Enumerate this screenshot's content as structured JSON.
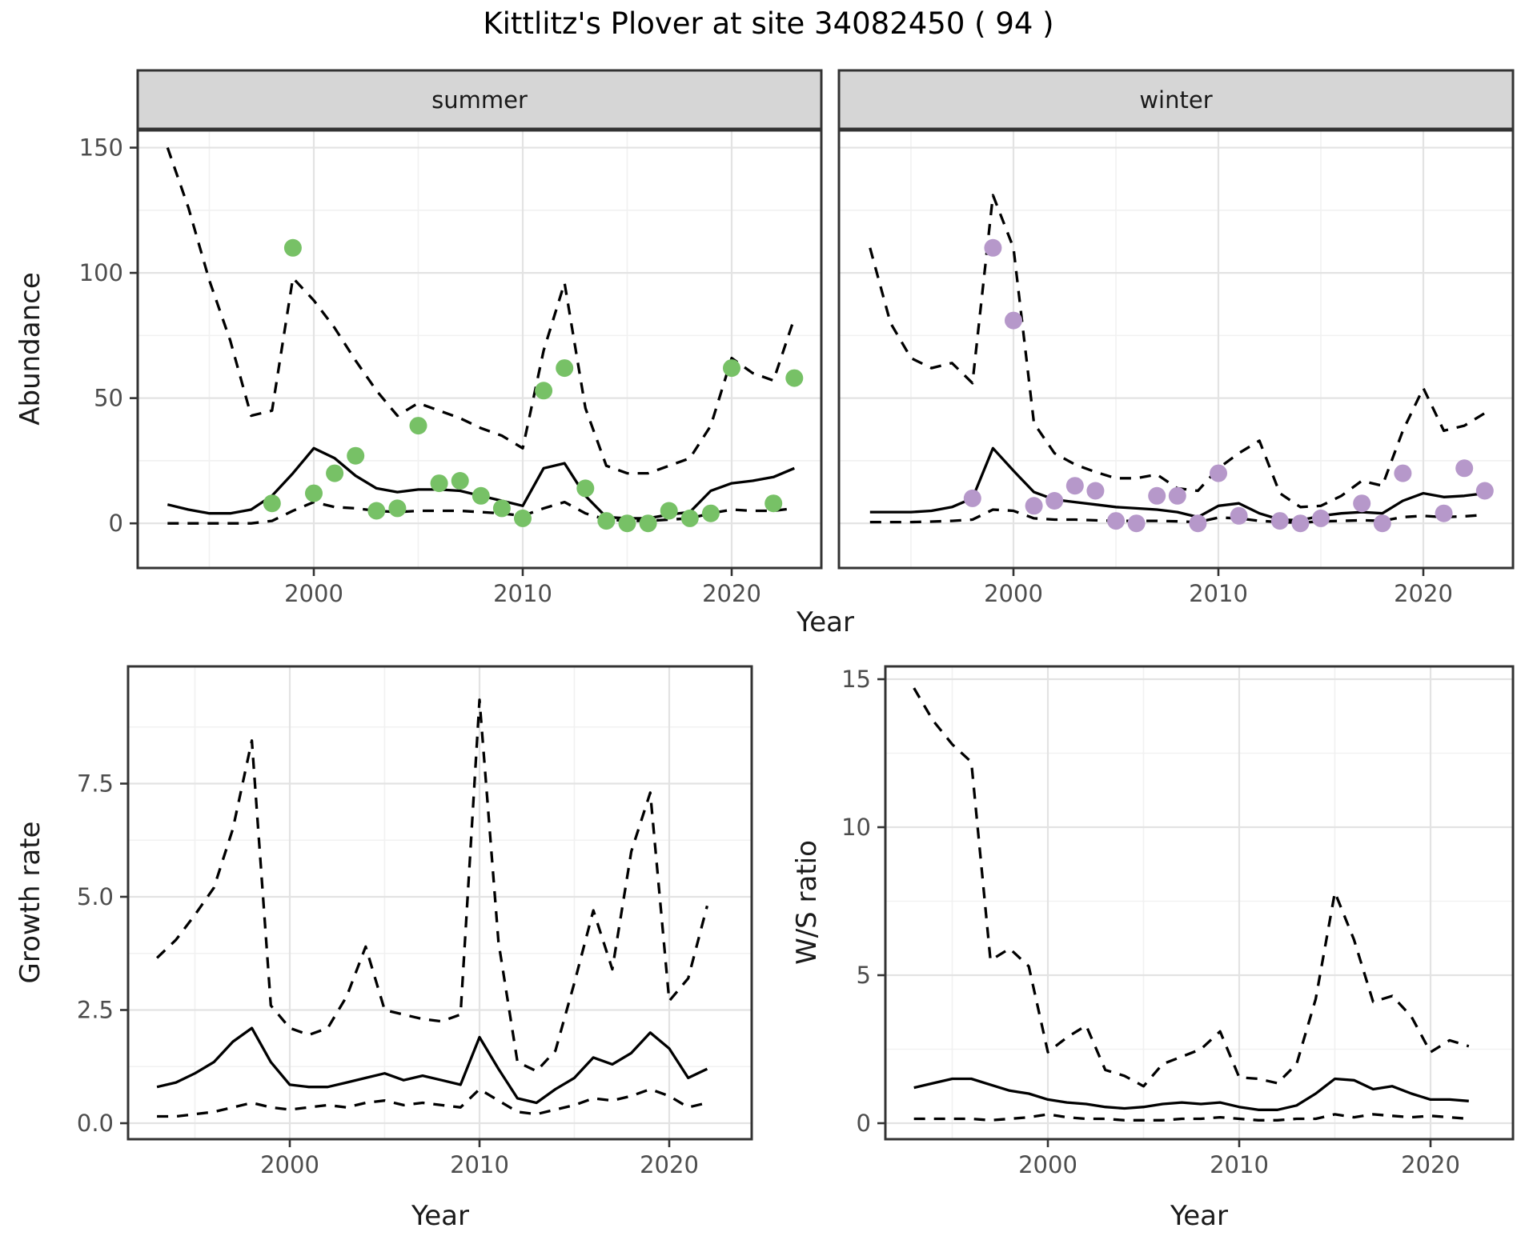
{
  "title": "Kittlitz's Plover at site 34082450 ( 94 )",
  "top_row": {
    "y_axis_label": "Abundance",
    "x_axis_label": "Year",
    "facets": [
      {
        "label": "summer"
      },
      {
        "label": "winter"
      }
    ]
  },
  "bottom_left": {
    "y_axis_label": "Growth rate",
    "x_axis_label": "Year"
  },
  "bottom_right": {
    "y_axis_label": "W/S ratio",
    "x_axis_label": "Year"
  },
  "colors": {
    "summer_points": "#77c166",
    "winter_points": "#b698ca",
    "line": "#000000",
    "grid_major": "#e3e3e3",
    "grid_minor": "#f1f1f1",
    "strip_bg": "#d6d6d6",
    "strip_border": "#333333",
    "panel_border": "#333333",
    "tick_text": "#4d4d4d"
  },
  "chart_data": [
    {
      "type": "line",
      "id": "abundance-summer",
      "title": "summer facet: abundance vs year",
      "xlabel": "Year",
      "ylabel": "Abundance",
      "xlim": [
        1991.5,
        2024.3
      ],
      "ylim": [
        0,
        157
      ],
      "grid": true,
      "legend_position": "none",
      "x": [
        1993,
        1994,
        1995,
        1996,
        1997,
        1998,
        1999,
        2000,
        2001,
        2002,
        2003,
        2004,
        2005,
        2006,
        2007,
        2008,
        2009,
        2010,
        2011,
        2012,
        2013,
        2014,
        2015,
        2016,
        2017,
        2018,
        2019,
        2020,
        2021,
        2022,
        2023
      ],
      "series": [
        {
          "name": "median",
          "style": "solid",
          "values": [
            7.5,
            5.5,
            4,
            4,
            5.5,
            11,
            20,
            30,
            26,
            19,
            14,
            12.5,
            13.5,
            13.5,
            13,
            11,
            9,
            7,
            22,
            24,
            11,
            2.5,
            2,
            2,
            3.5,
            4.5,
            13,
            16,
            17,
            18.5,
            22
          ]
        },
        {
          "name": "upper_ci",
          "style": "dashed",
          "values": [
            150,
            126,
            97,
            73,
            43,
            45,
            98,
            89,
            78,
            65,
            53,
            43,
            48,
            45,
            42,
            38,
            35,
            30,
            69,
            96,
            46,
            23,
            20,
            20,
            23,
            26,
            39,
            66,
            60,
            57,
            82
          ]
        },
        {
          "name": "lower_ci",
          "style": "dashed",
          "values": [
            0,
            0,
            0,
            0,
            0,
            1,
            5,
            8.5,
            6.5,
            6,
            5,
            4.5,
            5,
            5,
            5,
            4.5,
            4,
            3,
            6,
            8.5,
            4,
            1.5,
            1,
            1,
            1.5,
            2,
            4,
            5.5,
            5,
            5,
            6
          ]
        }
      ],
      "points": {
        "name": "observed_counts_summer",
        "color_key": "summer_points",
        "x": [
          1998,
          1999,
          2000,
          2001,
          2002,
          2003,
          2004,
          2005,
          2006,
          2007,
          2008,
          2009,
          2010,
          2011,
          2012,
          2013,
          2014,
          2015,
          2016,
          2017,
          2018,
          2019,
          2020,
          2022,
          2023
        ],
        "y": [
          8,
          110,
          12,
          20,
          27,
          5,
          6,
          39,
          16,
          17,
          11,
          6,
          2,
          53,
          62,
          14,
          1,
          0,
          0,
          5,
          2,
          4,
          62,
          8,
          58
        ]
      },
      "x_ticks": {
        "values": [
          2000,
          2010,
          2020
        ],
        "labels": [
          "2000",
          "2010",
          "2020"
        ]
      },
      "x_minor": [
        1995,
        2005,
        2015
      ],
      "y_ticks": {
        "values": [
          0,
          50,
          100,
          150
        ],
        "labels": [
          "0",
          "50",
          "100",
          "150"
        ]
      },
      "y_minor": [
        25,
        75,
        125
      ],
      "show_y_tick_labels": true
    },
    {
      "type": "line",
      "id": "abundance-winter",
      "title": "winter facet: abundance vs year",
      "xlabel": "Year",
      "ylabel": "Abundance",
      "xlim": [
        1991.5,
        2024.3
      ],
      "ylim": [
        0,
        157
      ],
      "grid": true,
      "legend_position": "none",
      "x": [
        1993,
        1994,
        1995,
        1996,
        1997,
        1998,
        1999,
        2000,
        2001,
        2002,
        2003,
        2004,
        2005,
        2006,
        2007,
        2008,
        2009,
        2010,
        2011,
        2012,
        2013,
        2014,
        2015,
        2016,
        2017,
        2018,
        2019,
        2020,
        2021,
        2022,
        2023
      ],
      "series": [
        {
          "name": "median",
          "style": "solid",
          "values": [
            4.5,
            4.5,
            4.5,
            5,
            6.5,
            10,
            30,
            21,
            12.5,
            9.5,
            8.5,
            7.5,
            6.5,
            6,
            5.5,
            4.5,
            2.5,
            7,
            8,
            4,
            1.5,
            1.2,
            3,
            4,
            4.5,
            4,
            9,
            12,
            10.5,
            11,
            12
          ]
        },
        {
          "name": "upper_ci",
          "style": "dashed",
          "values": [
            110,
            80,
            66,
            62,
            64,
            56,
            131,
            110,
            40,
            28,
            23.5,
            20.5,
            18,
            18,
            19.5,
            14,
            13,
            22,
            28,
            33,
            12,
            6.5,
            7,
            11,
            17,
            15,
            37,
            54,
            37,
            39,
            44
          ]
        },
        {
          "name": "lower_ci",
          "style": "dashed",
          "values": [
            0.5,
            0.5,
            0.5,
            0.7,
            1,
            1.5,
            5.5,
            5,
            2,
            1.5,
            1.5,
            1.2,
            1,
            1,
            1,
            0.8,
            0.5,
            2.3,
            2,
            1,
            0.5,
            0.3,
            0.8,
            1,
            1.2,
            1,
            2.5,
            3,
            2.5,
            2.8,
            3.4
          ]
        }
      ],
      "points": {
        "name": "observed_counts_winter",
        "color_key": "winter_points",
        "x": [
          1998,
          1999,
          2000,
          2001,
          2002,
          2003,
          2004,
          2005,
          2006,
          2007,
          2008,
          2009,
          2010,
          2011,
          2013,
          2014,
          2015,
          2017,
          2018,
          2019,
          2021,
          2022,
          2023
        ],
        "y": [
          10,
          110,
          81,
          7,
          9,
          15,
          13,
          1,
          0,
          11,
          11,
          0,
          20,
          3,
          1,
          0,
          2,
          8,
          0,
          20,
          4,
          22,
          13
        ]
      },
      "x_ticks": {
        "values": [
          2000,
          2010,
          2020
        ],
        "labels": [
          "2000",
          "2010",
          "2020"
        ]
      },
      "x_minor": [
        1995,
        2005,
        2015
      ],
      "y_ticks": {
        "values": [
          0,
          50,
          100,
          150
        ],
        "labels": [
          "0",
          "50",
          "100",
          "150"
        ]
      },
      "y_minor": [
        25,
        75,
        125
      ],
      "show_y_tick_labels": false
    },
    {
      "type": "line",
      "id": "growth-rate",
      "title": "growth rate vs year",
      "xlabel": "Year",
      "ylabel": "Growth rate",
      "xlim": [
        1991.5,
        2024.3
      ],
      "ylim": [
        0,
        10.1
      ],
      "grid": true,
      "legend_position": "none",
      "x": [
        1993,
        1994,
        1995,
        1996,
        1997,
        1998,
        1999,
        2000,
        2001,
        2002,
        2003,
        2004,
        2005,
        2006,
        2007,
        2008,
        2009,
        2010,
        2011,
        2012,
        2013,
        2014,
        2015,
        2016,
        2017,
        2018,
        2019,
        2020,
        2021,
        2022
      ],
      "series": [
        {
          "name": "median",
          "style": "solid",
          "values": [
            0.8,
            0.9,
            1.1,
            1.35,
            1.8,
            2.1,
            1.35,
            0.85,
            0.8,
            0.8,
            0.9,
            1.0,
            1.1,
            0.95,
            1.05,
            0.95,
            0.85,
            1.9,
            1.2,
            0.55,
            0.45,
            0.75,
            1.0,
            1.45,
            1.3,
            1.55,
            2.0,
            1.65,
            1.0,
            1.2
          ]
        },
        {
          "name": "upper_ci",
          "style": "dashed",
          "values": [
            3.65,
            4.05,
            4.6,
            5.2,
            6.5,
            8.45,
            2.6,
            2.1,
            1.95,
            2.1,
            2.8,
            3.9,
            2.5,
            2.4,
            2.3,
            2.25,
            2.4,
            9.35,
            4.0,
            1.35,
            1.15,
            1.6,
            3.1,
            4.7,
            3.4,
            6.0,
            7.3,
            2.7,
            3.2,
            4.8
          ]
        },
        {
          "name": "lower_ci",
          "style": "dashed",
          "values": [
            0.15,
            0.15,
            0.2,
            0.25,
            0.35,
            0.45,
            0.35,
            0.3,
            0.35,
            0.4,
            0.35,
            0.45,
            0.5,
            0.4,
            0.45,
            0.4,
            0.35,
            0.75,
            0.5,
            0.25,
            0.2,
            0.3,
            0.4,
            0.55,
            0.5,
            0.6,
            0.75,
            0.6,
            0.35,
            0.45
          ]
        }
      ],
      "points": null,
      "x_ticks": {
        "values": [
          2000,
          2010,
          2020
        ],
        "labels": [
          "2000",
          "2010",
          "2020"
        ]
      },
      "x_minor": [
        1995,
        2005,
        2015
      ],
      "y_ticks": {
        "values": [
          0,
          2.5,
          5,
          7.5
        ],
        "labels": [
          "0.0",
          "2.5",
          "5.0",
          "7.5"
        ]
      },
      "y_minor": [
        1.25,
        3.75,
        6.25,
        8.75
      ],
      "show_y_tick_labels": true
    },
    {
      "type": "line",
      "id": "ws-ratio",
      "title": "winter/summer ratio vs year",
      "xlabel": "Year",
      "ylabel": "W/S ratio",
      "xlim": [
        1991.5,
        2024.3
      ],
      "ylim": [
        0,
        15.4
      ],
      "grid": true,
      "legend_position": "none",
      "x": [
        1993,
        1994,
        1995,
        1996,
        1997,
        1998,
        1999,
        2000,
        2001,
        2002,
        2003,
        2004,
        2005,
        2006,
        2007,
        2008,
        2009,
        2010,
        2011,
        2012,
        2013,
        2014,
        2015,
        2016,
        2017,
        2018,
        2019,
        2020,
        2021,
        2022
      ],
      "series": [
        {
          "name": "median",
          "style": "solid",
          "values": [
            1.2,
            1.35,
            1.5,
            1.5,
            1.3,
            1.1,
            1.0,
            0.8,
            0.7,
            0.65,
            0.55,
            0.5,
            0.55,
            0.65,
            0.7,
            0.65,
            0.7,
            0.55,
            0.45,
            0.45,
            0.6,
            1.0,
            1.5,
            1.45,
            1.15,
            1.25,
            1.0,
            0.8,
            0.8,
            0.75
          ]
        },
        {
          "name": "upper_ci",
          "style": "dashed",
          "values": [
            14.7,
            13.6,
            12.8,
            12.2,
            5.5,
            5.9,
            5.3,
            2.4,
            2.9,
            3.3,
            1.8,
            1.6,
            1.25,
            2.0,
            2.25,
            2.5,
            3.1,
            1.55,
            1.5,
            1.35,
            2.0,
            4.2,
            7.8,
            6.2,
            4.1,
            4.3,
            3.6,
            2.4,
            2.8,
            2.6
          ]
        },
        {
          "name": "lower_ci",
          "style": "dashed",
          "values": [
            0.15,
            0.15,
            0.15,
            0.15,
            0.1,
            0.15,
            0.2,
            0.3,
            0.2,
            0.15,
            0.15,
            0.1,
            0.1,
            0.1,
            0.15,
            0.15,
            0.2,
            0.15,
            0.1,
            0.1,
            0.15,
            0.15,
            0.3,
            0.2,
            0.3,
            0.25,
            0.2,
            0.25,
            0.2,
            0.15
          ]
        }
      ],
      "points": null,
      "x_ticks": {
        "values": [
          2000,
          2010,
          2020
        ],
        "labels": [
          "2000",
          "2010",
          "2020"
        ]
      },
      "x_minor": [
        1995,
        2005,
        2015
      ],
      "y_ticks": {
        "values": [
          0,
          5,
          10,
          15
        ],
        "labels": [
          "0",
          "5",
          "10",
          "15"
        ]
      },
      "y_minor": [
        2.5,
        7.5,
        12.5
      ],
      "show_y_tick_labels": true
    }
  ]
}
